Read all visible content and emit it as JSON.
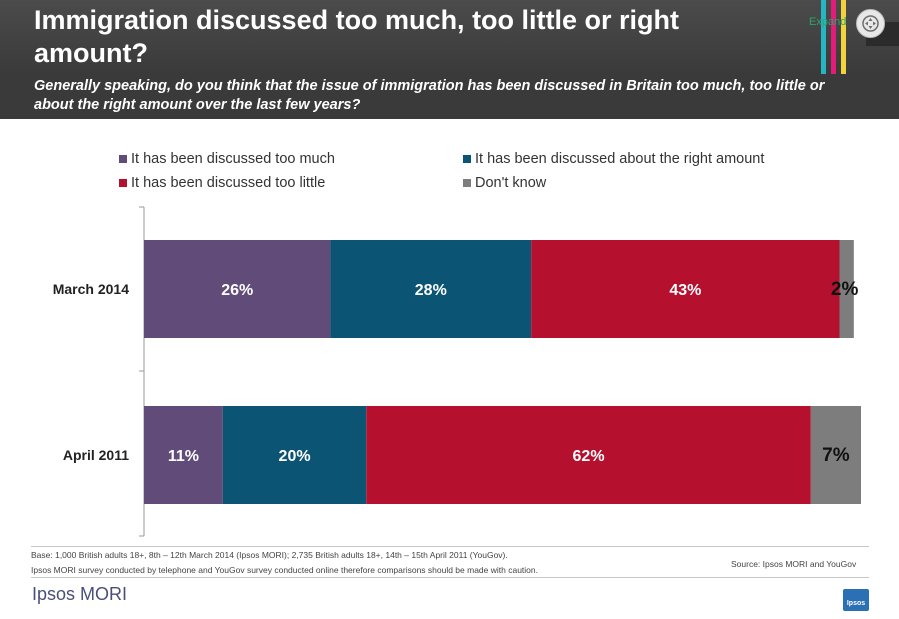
{
  "header": {
    "title": "Immigration discussed too much, too little or right amount?",
    "expand_label": "Expand",
    "stripe_colors": [
      "#25b5c4",
      "#e31c79",
      "#f2d33b"
    ]
  },
  "subtitle": "Generally speaking, do you think that the issue of immigration has been discussed in Britain too much, too little or about the right amount over the last few years?",
  "chart_data": {
    "type": "bar",
    "orientation": "horizontal",
    "stacked": true,
    "categories": [
      "March 2014",
      "April 2011"
    ],
    "series": [
      {
        "name": "It has been discussed too much",
        "color": "#614b79",
        "values": [
          26,
          11
        ],
        "labels": [
          "26%",
          "11%"
        ]
      },
      {
        "name": "It has been discussed about the right amount",
        "color": "#0b5474",
        "values": [
          28,
          20
        ],
        "labels": [
          "28%",
          "20%"
        ]
      },
      {
        "name": "It has been discussed too little",
        "color": "#b5112f",
        "values": [
          43,
          62
        ],
        "labels": [
          "43%",
          "62%"
        ]
      },
      {
        "name": "Don't know",
        "color": "#7d7d7d",
        "values": [
          2,
          7
        ],
        "labels": [
          "2%",
          "7%"
        ]
      }
    ],
    "xlim": [
      0,
      100
    ],
    "legend_position": "top",
    "grid": false
  },
  "footer": {
    "base_note": "Base: 1,000 British adults 18+, 8th – 12th March 2014 (Ipsos MORI); 2,735 British adults 18+, 14th – 15th April 2011 (YouGov).",
    "method_note": "Ipsos MORI survey conducted by telephone and YouGov survey conducted online therefore comparisons should be made with caution.",
    "source": "Source: Ipsos MORI and YouGov",
    "brand": "Ipsos MORI",
    "logo_text": "Ipsos"
  }
}
